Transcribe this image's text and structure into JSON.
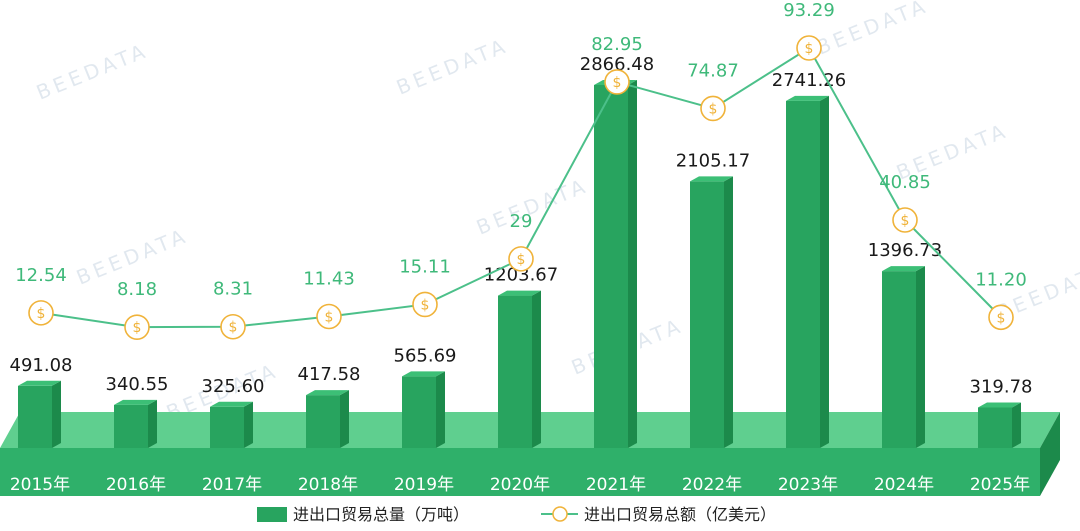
{
  "colors": {
    "bar_front": "#28a45f",
    "bar_side": "#1c8a4b",
    "bar_top": "#3cbf76",
    "floor_front": "#2fb06a",
    "floor_top": "#5fcf8f",
    "line": "#4cc08a",
    "marker_stroke": "#f0b33a",
    "marker_fill": "#ffffff",
    "line_label": "#3fb97a"
  },
  "watermark": "BEEDATA",
  "chart_data": {
    "type": "bar",
    "categories": [
      "2015年",
      "2016年",
      "2017年",
      "2018年",
      "2019年",
      "2020年",
      "2021年",
      "2022年",
      "2023年",
      "2024年",
      "2025年"
    ],
    "series": [
      {
        "name": "进出口贸易总量（万吨）",
        "type": "bar",
        "values": [
          491.08,
          340.55,
          325.6,
          417.58,
          565.69,
          1203.67,
          2866.48,
          2105.17,
          2741.26,
          1396.73,
          319.78
        ],
        "labels": [
          "491.08",
          "340.55",
          "325.60",
          "417.58",
          "565.69",
          "1203.67",
          "2866.48",
          "2105.17",
          "2741.26",
          "1396.73",
          "319.78"
        ]
      },
      {
        "name": "进出口贸易总额（亿美元）",
        "type": "line",
        "values": [
          12.54,
          8.18,
          8.31,
          11.43,
          15.11,
          29,
          82.95,
          74.87,
          93.29,
          40.85,
          11.2
        ],
        "labels": [
          "12.54",
          "8.18",
          "8.31",
          "11.43",
          "15.11",
          "29",
          "82.95",
          "74.87",
          "93.29",
          "40.85",
          "11.20"
        ],
        "marker_symbol": "$"
      }
    ],
    "title": "",
    "xlabel": "",
    "ylabel": "",
    "legend": "bottom"
  }
}
